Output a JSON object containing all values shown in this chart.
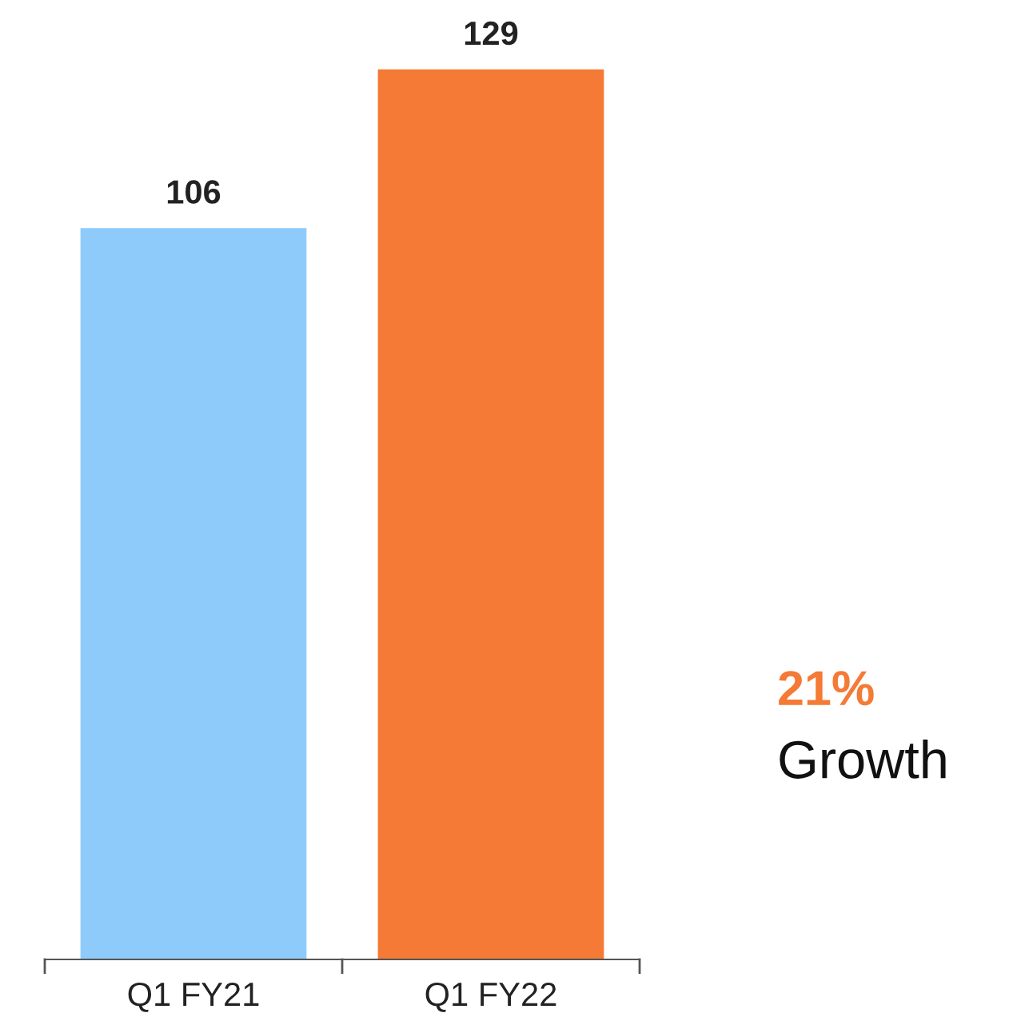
{
  "chart_data": {
    "type": "bar",
    "categories": [
      "Q1 FY21",
      "Q1 FY22"
    ],
    "values": [
      106,
      129
    ],
    "colors": [
      "#8ecbfb",
      "#f47a35"
    ],
    "data_labels": true,
    "grid": false,
    "legend": false,
    "tick_labels": "x",
    "annotations": [
      "21%",
      "Growth"
    ]
  }
}
